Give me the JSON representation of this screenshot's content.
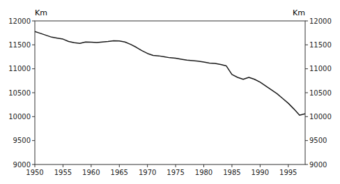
{
  "chart_data": {
    "type": "line",
    "ylabel": "Km",
    "y2label": "Km",
    "x": [
      1950,
      1951,
      1952,
      1953,
      1954,
      1955,
      1956,
      1957,
      1958,
      1959,
      1960,
      1961,
      1962,
      1963,
      1964,
      1965,
      1966,
      1967,
      1968,
      1969,
      1970,
      1971,
      1972,
      1973,
      1974,
      1975,
      1976,
      1977,
      1978,
      1979,
      1980,
      1981,
      1982,
      1983,
      1984,
      1985,
      1986,
      1987,
      1988,
      1989,
      1990,
      1991,
      1992,
      1993,
      1994,
      1995,
      1996,
      1997,
      1998
    ],
    "values": [
      11780,
      11740,
      11700,
      11660,
      11640,
      11620,
      11570,
      11545,
      11530,
      11560,
      11555,
      11550,
      11560,
      11570,
      11585,
      11580,
      11560,
      11510,
      11450,
      11380,
      11320,
      11280,
      11270,
      11250,
      11230,
      11220,
      11200,
      11180,
      11170,
      11160,
      11140,
      11120,
      11110,
      11090,
      11060,
      10880,
      10820,
      10780,
      10820,
      10780,
      10720,
      10640,
      10560,
      10480,
      10380,
      10280,
      10160,
      10030,
      10060
    ],
    "color": "#1a1a1a",
    "xlim": [
      1950,
      1998
    ],
    "xticks": [
      1950,
      1955,
      1960,
      1965,
      1970,
      1975,
      1980,
      1985,
      1990,
      1995
    ],
    "ylim": [
      9000,
      12000
    ],
    "yticks": [
      9000,
      9500,
      10000,
      10500,
      11000,
      11500,
      12000
    ],
    "y2lim": [
      9000,
      12000
    ],
    "y2ticks": [
      9000,
      9500,
      10000,
      10500,
      11000,
      11500,
      12000
    ],
    "grid": false
  }
}
